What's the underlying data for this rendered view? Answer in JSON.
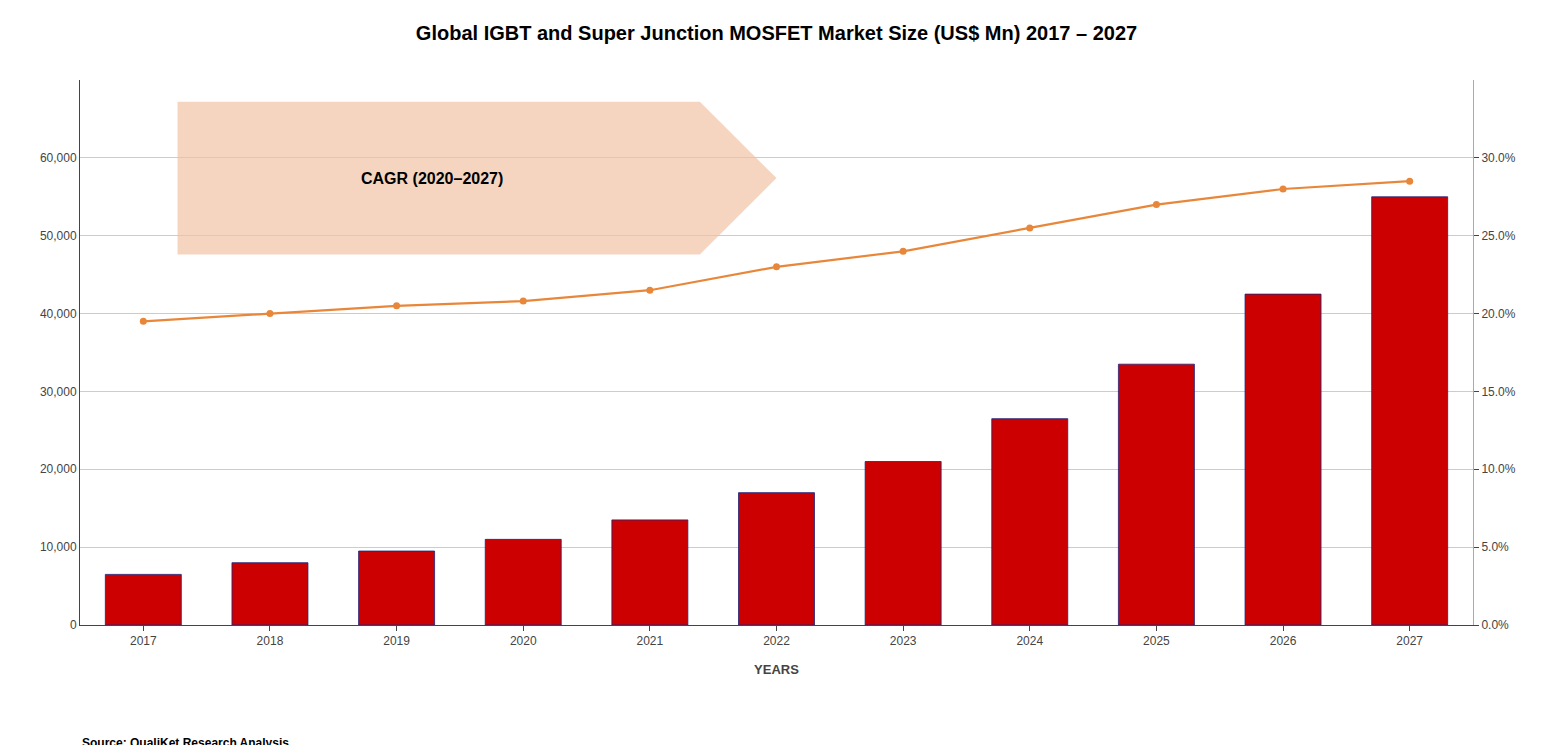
{
  "chart_data": {
    "type": "bar",
    "title": "Global IGBT and Super Junction MOSFET Market Size (US$ Mn) 2017 – 2027",
    "xlabel": "YEARS",
    "x": [
      2017,
      2018,
      2019,
      2020,
      2021,
      2022,
      2023,
      2024,
      2025,
      2026,
      2027
    ],
    "xlim": [
      2016.5,
      2027.5
    ],
    "xticks": [
      2017,
      2018,
      2019,
      2020,
      2021,
      2022,
      2023,
      2024,
      2025,
      2026,
      2027
    ],
    "ylim": [
      0,
      70000
    ],
    "yticks": [
      0,
      {
        "value": 10000,
        "label": "10,000"
      },
      {
        "value": 20000,
        "label": "20,000"
      },
      {
        "value": 30000,
        "label": "30,000"
      },
      {
        "value": 40000,
        "label": "40,000"
      },
      {
        "value": 50000,
        "label": "50,000"
      },
      {
        "value": 60000,
        "label": "60,000"
      }
    ],
    "y2lim": [
      0.0,
      0.35
    ],
    "y2ticks": [
      {
        "value": 0.0,
        "label": "0.0%"
      },
      {
        "value": 0.05,
        "label": "5.0%"
      },
      {
        "value": 0.1,
        "label": "10.0%"
      },
      {
        "value": 0.15,
        "label": "15.0%"
      },
      {
        "value": 0.2,
        "label": "20.0%"
      },
      {
        "value": 0.25,
        "label": "25.0%"
      },
      {
        "value": 0.3,
        "label": "30.0%"
      }
    ],
    "grid": true,
    "series": [
      {
        "type": "bar",
        "color": "#CC0000",
        "values": [
          6500,
          8000,
          9500,
          11000,
          13500,
          17000,
          21000,
          26500,
          33500,
          42500,
          55000
        ]
      },
      {
        "type": "line",
        "axis": "y2",
        "color": "#E8873A",
        "marker": "circle",
        "values": [
          0.195,
          0.2,
          0.205,
          0.208,
          0.215,
          0.23,
          0.24,
          0.255,
          0.27,
          0.28,
          0.285
        ]
      }
    ],
    "annotations": [
      {
        "text": "CAGR (2020–2027)",
        "color": "#F5D5C0"
      },
      {
        "text": "Source: QualiKet Research Analysis"
      }
    ]
  }
}
